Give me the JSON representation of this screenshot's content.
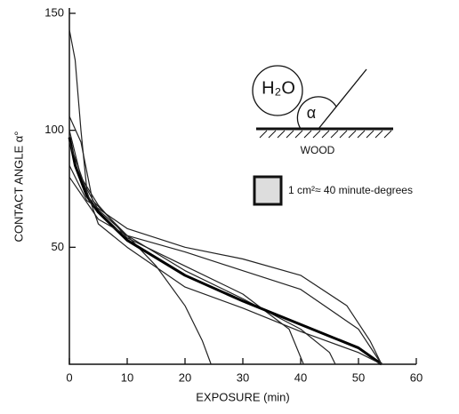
{
  "chart_data": {
    "type": "line",
    "x_label": "EXPOSURE (min)",
    "y_label": "CONTACT ANGLE α°",
    "xlim": [
      0,
      60
    ],
    "ylim": [
      0,
      150
    ],
    "xticks": [
      0,
      10,
      20,
      30,
      40,
      50,
      60
    ],
    "yticks": [
      50,
      100,
      150
    ],
    "series": [
      {
        "color": "#222",
        "x": [
          0,
          1,
          2,
          3,
          5,
          10,
          15,
          20,
          23,
          24.5
        ],
        "values": [
          143,
          130,
          100,
          75,
          66,
          55,
          42,
          25,
          10,
          0
        ]
      },
      {
        "color": "#222",
        "x": [
          0,
          2,
          4,
          10,
          20,
          30,
          40,
          45,
          46
        ],
        "values": [
          106,
          95,
          70,
          55,
          40,
          28,
          15,
          5,
          0
        ]
      },
      {
        "color": "#222",
        "x": [
          0,
          2,
          5,
          10,
          20,
          30,
          38,
          40.5
        ],
        "values": [
          100,
          80,
          68,
          54,
          42,
          30,
          15,
          0
        ]
      },
      {
        "color": "#000",
        "x": [
          0,
          1,
          3,
          5,
          10,
          20,
          30,
          40,
          50,
          54
        ],
        "values": [
          97,
          85,
          72,
          65,
          53,
          38,
          27,
          17,
          7,
          0
        ],
        "thick": true
      },
      {
        "color": "#222",
        "x": [
          0,
          3,
          10,
          20,
          30,
          40,
          48,
          52,
          54
        ],
        "values": [
          85,
          70,
          58,
          50,
          45,
          38,
          25,
          10,
          0
        ]
      },
      {
        "color": "#222",
        "x": [
          0,
          5,
          10,
          20,
          30,
          40,
          50,
          54
        ],
        "values": [
          80,
          62,
          55,
          48,
          40,
          32,
          15,
          0
        ]
      },
      {
        "color": "#222",
        "x": [
          0,
          5,
          10,
          20,
          30,
          40,
          50,
          54
        ],
        "values": [
          95,
          60,
          50,
          33,
          24,
          14,
          5,
          0
        ]
      }
    ],
    "annotations": {
      "liquid": "H₂O",
      "angle": "α",
      "surface": "WOOD",
      "scale_note": "1 cm²≈ 40 minute-degrees"
    }
  }
}
